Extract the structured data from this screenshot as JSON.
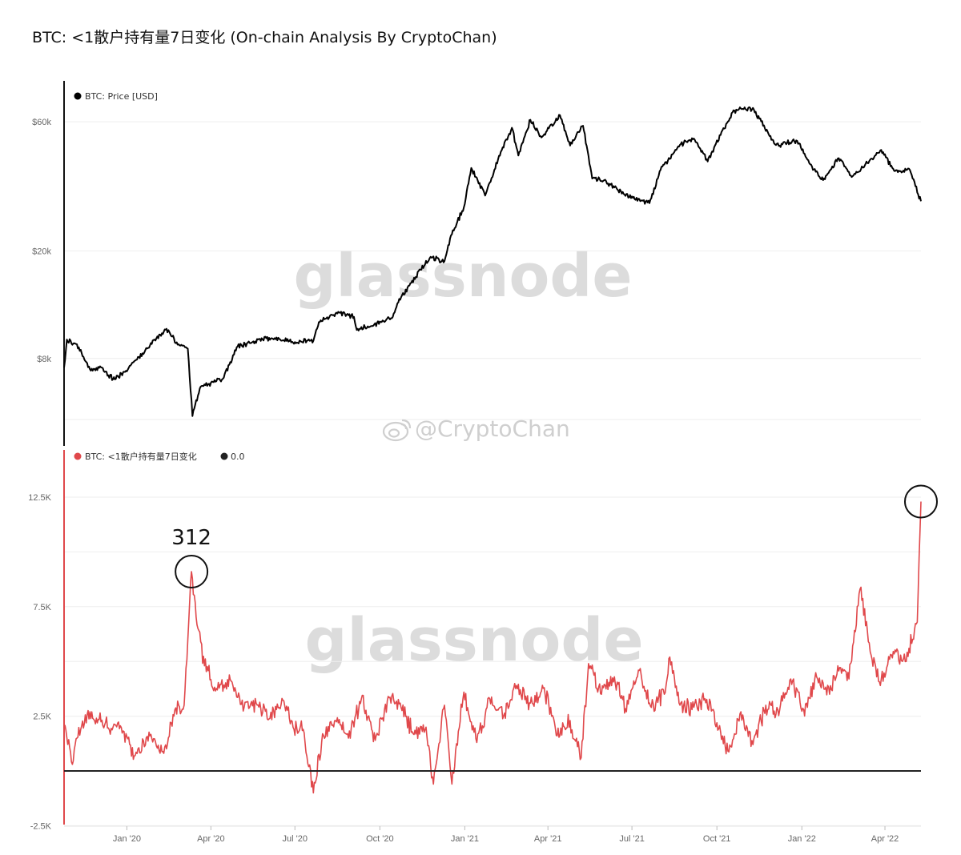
{
  "title": "BTC: <1散户持有量7日变化 (On-chain Analysis By CryptoChan)",
  "watermark": "glassnode",
  "handle": "@CryptoChan",
  "colors": {
    "price": "#000000",
    "change": "#e0484b",
    "zero": "#222222",
    "grid": "#eeeeee",
    "watermark": "#dcdcdc"
  },
  "chart_data": [
    {
      "type": "line",
      "scale": "log",
      "legend": [
        {
          "name": "BTC: Price [USD]",
          "color": "#000000"
        }
      ],
      "y_ticks": [
        {
          "label": "$60k",
          "value": 60000
        },
        {
          "label": "$20k",
          "value": 20000
        },
        {
          "label": "$8k",
          "value": 8000
        }
      ],
      "series": [
        {
          "name": "BTC: Price [USD]",
          "points": [
            [
              "2019-10-25",
              7400
            ],
            [
              "2019-10-28",
              9400
            ],
            [
              "2019-11-10",
              8800
            ],
            [
              "2019-11-22",
              7300
            ],
            [
              "2019-12-05",
              7400
            ],
            [
              "2019-12-17",
              6700
            ],
            [
              "2019-12-31",
              7200
            ],
            [
              "2020-01-14",
              8100
            ],
            [
              "2020-01-31",
              9400
            ],
            [
              "2020-02-13",
              10300
            ],
            [
              "2020-02-25",
              9000
            ],
            [
              "2020-03-07",
              8700
            ],
            [
              "2020-03-12",
              4900
            ],
            [
              "2020-03-20",
              6200
            ],
            [
              "2020-04-01",
              6500
            ],
            [
              "2020-04-15",
              6800
            ],
            [
              "2020-04-29",
              8800
            ],
            [
              "2020-05-10",
              9100
            ],
            [
              "2020-05-31",
              9500
            ],
            [
              "2020-06-15",
              9400
            ],
            [
              "2020-07-01",
              9200
            ],
            [
              "2020-07-21",
              9300
            ],
            [
              "2020-07-27",
              10900
            ],
            [
              "2020-08-17",
              11900
            ],
            [
              "2020-09-03",
              11400
            ],
            [
              "2020-09-06",
              10200
            ],
            [
              "2020-09-25",
              10700
            ],
            [
              "2020-10-15",
              11400
            ],
            [
              "2020-10-21",
              12900
            ],
            [
              "2020-11-05",
              15500
            ],
            [
              "2020-11-25",
              19000
            ],
            [
              "2020-12-10",
              18300
            ],
            [
              "2020-12-17",
              22800
            ],
            [
              "2020-12-31",
              29000
            ],
            [
              "2021-01-08",
              40500
            ],
            [
              "2021-01-23",
              32000
            ],
            [
              "2021-02-09",
              46500
            ],
            [
              "2021-02-21",
              57000
            ],
            [
              "2021-02-28",
              45000
            ],
            [
              "2021-03-13",
              61000
            ],
            [
              "2021-03-25",
              52500
            ],
            [
              "2021-04-14",
              63500
            ],
            [
              "2021-04-25",
              49000
            ],
            [
              "2021-05-09",
              58000
            ],
            [
              "2021-05-19",
              37000
            ],
            [
              "2021-06-01",
              36500
            ],
            [
              "2021-06-22",
              32500
            ],
            [
              "2021-07-20",
              30000
            ],
            [
              "2021-08-01",
              39800
            ],
            [
              "2021-08-22",
              49300
            ],
            [
              "2021-09-06",
              52000
            ],
            [
              "2021-09-21",
              42800
            ],
            [
              "2021-10-06",
              55000
            ],
            [
              "2021-10-20",
              66000
            ],
            [
              "2021-11-09",
              67500
            ],
            [
              "2021-11-26",
              54000
            ],
            [
              "2021-12-04",
              49200
            ],
            [
              "2021-12-27",
              51000
            ],
            [
              "2022-01-10",
              41800
            ],
            [
              "2022-01-24",
              36500
            ],
            [
              "2022-02-10",
              44000
            ],
            [
              "2022-02-24",
              37500
            ],
            [
              "2022-03-28",
              47200
            ],
            [
              "2022-04-11",
              39500
            ],
            [
              "2022-04-28",
              39800
            ],
            [
              "2022-05-10",
              30500
            ]
          ]
        }
      ]
    },
    {
      "type": "line",
      "legend": [
        {
          "name": "BTC: <1散户持有量7日变化",
          "color": "#e0484b"
        },
        {
          "name": "0.0",
          "color": "#222222"
        }
      ],
      "y_ticks": [
        {
          "label": "12.5K",
          "value": 12500
        },
        {
          "label": "7.5K",
          "value": 7500
        },
        {
          "label": "2.5K",
          "value": 2500
        },
        {
          "label": "-2.5K",
          "value": -2500
        }
      ],
      "x_ticks": [
        "Jan '20",
        "Apr '20",
        "Jul '20",
        "Oct '20",
        "Jan '21",
        "Apr '21",
        "Jul '21",
        "Oct '21",
        "Jan '22",
        "Apr '22"
      ],
      "annotations": [
        {
          "label": "312",
          "date": "2020-03-11",
          "value": 9100
        },
        {
          "label": "",
          "date": "2022-05-10",
          "value": 12300
        }
      ],
      "series": [
        {
          "name": "BTC: <1散户持有量7日变化",
          "points": [
            [
              "2019-10-25",
              2000
            ],
            [
              "2019-11-03",
              300
            ],
            [
              "2019-11-08",
              1500
            ],
            [
              "2019-11-22",
              2700
            ],
            [
              "2019-12-08",
              2100
            ],
            [
              "2019-12-29",
              1800
            ],
            [
              "2020-01-10",
              700
            ],
            [
              "2020-01-26",
              1600
            ],
            [
              "2020-02-10",
              800
            ],
            [
              "2020-02-22",
              2800
            ],
            [
              "2020-03-03",
              3000
            ],
            [
              "2020-03-11",
              9100
            ],
            [
              "2020-03-18",
              6500
            ],
            [
              "2020-03-25",
              4800
            ],
            [
              "2020-04-08",
              3700
            ],
            [
              "2020-04-23",
              4100
            ],
            [
              "2020-05-07",
              2900
            ],
            [
              "2020-05-20",
              3100
            ],
            [
              "2020-06-04",
              2400
            ],
            [
              "2020-06-19",
              3200
            ],
            [
              "2020-06-29",
              2000
            ],
            [
              "2020-07-10",
              1900
            ],
            [
              "2020-07-21",
              -1000
            ],
            [
              "2020-07-31",
              1700
            ],
            [
              "2020-08-14",
              2300
            ],
            [
              "2020-08-28",
              1500
            ],
            [
              "2020-09-11",
              3300
            ],
            [
              "2020-09-26",
              1400
            ],
            [
              "2020-10-09",
              3200
            ],
            [
              "2020-10-23",
              3100
            ],
            [
              "2020-11-06",
              1700
            ],
            [
              "2020-11-20",
              2000
            ],
            [
              "2020-11-28",
              -600
            ],
            [
              "2020-12-10",
              3000
            ],
            [
              "2020-12-18",
              -600
            ],
            [
              "2020-12-31",
              3600
            ],
            [
              "2021-01-14",
              1300
            ],
            [
              "2021-01-28",
              3300
            ],
            [
              "2021-02-12",
              2500
            ],
            [
              "2021-02-26",
              3900
            ],
            [
              "2021-03-13",
              3100
            ],
            [
              "2021-03-28",
              3800
            ],
            [
              "2021-04-11",
              1600
            ],
            [
              "2021-04-25",
              2300
            ],
            [
              "2021-05-07",
              600
            ],
            [
              "2021-05-15",
              4900
            ],
            [
              "2021-05-29",
              3500
            ],
            [
              "2021-06-12",
              4300
            ],
            [
              "2021-06-25",
              2700
            ],
            [
              "2021-07-08",
              4600
            ],
            [
              "2021-07-22",
              2900
            ],
            [
              "2021-08-05",
              3500
            ],
            [
              "2021-08-11",
              5200
            ],
            [
              "2021-08-21",
              3100
            ],
            [
              "2021-09-04",
              2800
            ],
            [
              "2021-09-18",
              3300
            ],
            [
              "2021-10-01",
              2200
            ],
            [
              "2021-10-13",
              900
            ],
            [
              "2021-10-27",
              2700
            ],
            [
              "2021-11-09",
              1200
            ],
            [
              "2021-11-23",
              3000
            ],
            [
              "2021-12-06",
              2800
            ],
            [
              "2021-12-20",
              4200
            ],
            [
              "2022-01-03",
              2800
            ],
            [
              "2022-01-17",
              4300
            ],
            [
              "2022-01-31",
              3500
            ],
            [
              "2022-02-09",
              4800
            ],
            [
              "2022-02-21",
              4200
            ],
            [
              "2022-03-05",
              8300
            ],
            [
              "2022-03-17",
              5300
            ],
            [
              "2022-03-27",
              3900
            ],
            [
              "2022-04-08",
              5300
            ],
            [
              "2022-04-20",
              5000
            ],
            [
              "2022-04-27",
              5600
            ],
            [
              "2022-05-06",
              6800
            ],
            [
              "2022-05-10",
              12300
            ]
          ]
        },
        {
          "name": "0.0",
          "points": [
            [
              "2019-10-25",
              0
            ],
            [
              "2022-05-10",
              0
            ]
          ]
        }
      ]
    }
  ]
}
